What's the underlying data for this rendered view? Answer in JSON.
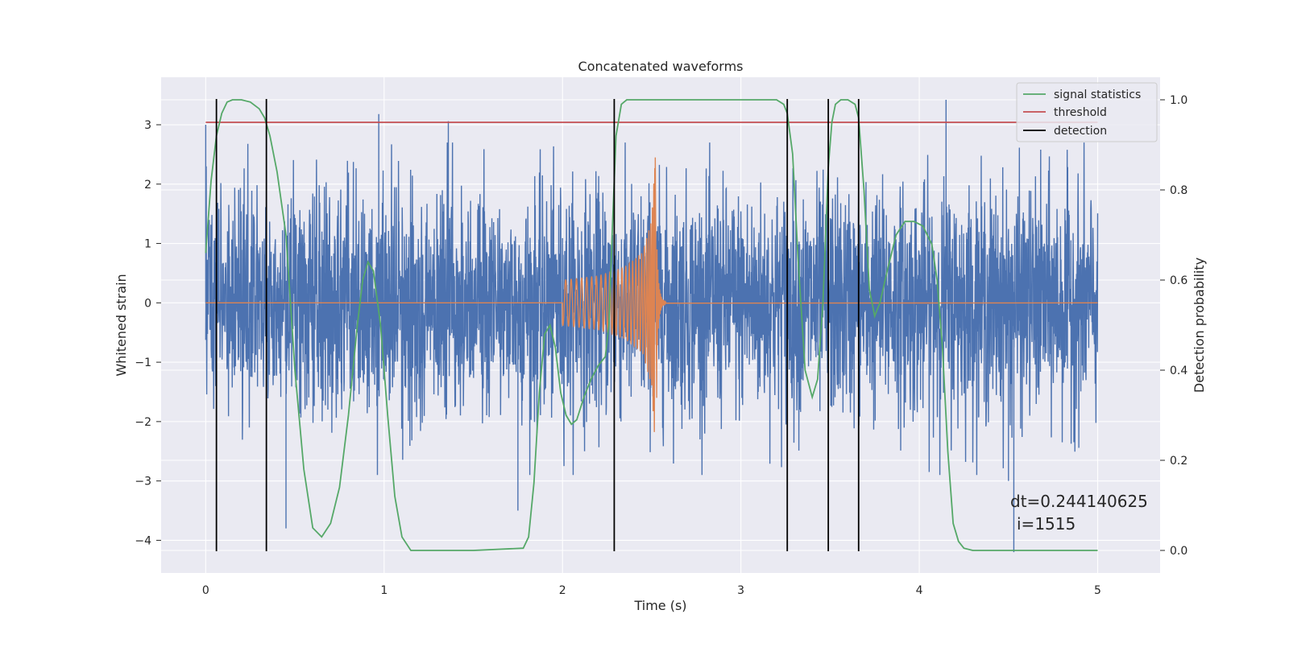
{
  "chart_data": {
    "type": "line",
    "title": "Concatenated waveforms",
    "xlabel": "Time (s)",
    "ylabel": "Whitened strain",
    "y2label": "Detection probability",
    "xlim": [
      -0.25,
      5.35
    ],
    "ylim": [
      -4.55,
      3.8
    ],
    "y2lim": [
      -0.05,
      1.05
    ],
    "x_ticks": [
      0,
      1,
      2,
      3,
      4,
      5
    ],
    "y_ticks": [
      -4,
      -3,
      -2,
      -1,
      0,
      1,
      2,
      3
    ],
    "y2_ticks": [
      0.0,
      0.2,
      0.4,
      0.6,
      0.8,
      1.0
    ],
    "grid": true,
    "legend_position": "top-right",
    "annotation": {
      "dt_text": "dt=0.244140625",
      "i_text": "i=1515"
    },
    "colors": {
      "strain": "#4c72b0",
      "injection": "#dd8452",
      "statistics": "#55a868",
      "threshold": "#c44e52",
      "detection": "#000000",
      "background": "#eaeaf2",
      "grid": "#ffffff"
    },
    "series": [
      {
        "name": "",
        "kind": "whitened strain noise (dense, approx. -2.5 to 2.5 with spikes)",
        "extremes": [
          [
            0.0,
            3.0
          ],
          [
            0.45,
            -3.8
          ],
          [
            0.97,
            3.18
          ],
          [
            1.36,
            3.06
          ],
          [
            1.75,
            -3.5
          ],
          [
            4.15,
            3.42
          ],
          [
            4.53,
            -4.2
          ],
          [
            4.5,
            -3.0
          ]
        ]
      },
      {
        "name": "",
        "kind": "injected chirp",
        "start": 2.0,
        "merger": 2.52,
        "end": 2.7,
        "envelope": [
          [
            2.0,
            0.38
          ],
          [
            2.2,
            0.45
          ],
          [
            2.35,
            0.6
          ],
          [
            2.45,
            0.85
          ],
          [
            2.5,
            1.4
          ],
          [
            2.52,
            2.45
          ],
          [
            2.53,
            -1.6
          ],
          [
            2.56,
            0.1
          ],
          [
            2.7,
            0.0
          ]
        ]
      },
      {
        "name": "signal statistics",
        "axis": "right",
        "x": [
          0.0,
          0.03,
          0.06,
          0.09,
          0.12,
          0.15,
          0.2,
          0.25,
          0.3,
          0.33,
          0.36,
          0.4,
          0.45,
          0.5,
          0.55,
          0.6,
          0.65,
          0.7,
          0.75,
          0.8,
          0.85,
          0.88,
          0.91,
          0.94,
          0.98,
          1.02,
          1.06,
          1.1,
          1.15,
          1.2,
          1.5,
          1.78,
          1.81,
          1.84,
          1.87,
          1.9,
          1.93,
          1.96,
          1.99,
          2.02,
          2.05,
          2.08,
          2.12,
          2.16,
          2.2,
          2.24,
          2.26,
          2.28,
          2.3,
          2.33,
          2.36,
          2.42,
          2.6,
          3.0,
          3.2,
          3.24,
          3.26,
          3.29,
          3.32,
          3.36,
          3.4,
          3.43,
          3.46,
          3.49,
          3.51,
          3.53,
          3.56,
          3.6,
          3.64,
          3.66,
          3.69,
          3.72,
          3.75,
          3.78,
          3.82,
          3.87,
          3.92,
          3.97,
          4.02,
          4.07,
          4.1,
          4.13,
          4.16,
          4.19,
          4.22,
          4.25,
          4.3,
          4.4,
          5.0
        ],
        "y": [
          0.66,
          0.82,
          0.92,
          0.97,
          0.995,
          1.0,
          1.0,
          0.995,
          0.98,
          0.96,
          0.92,
          0.84,
          0.7,
          0.4,
          0.18,
          0.05,
          0.03,
          0.06,
          0.14,
          0.3,
          0.5,
          0.6,
          0.64,
          0.62,
          0.5,
          0.3,
          0.12,
          0.03,
          0.0,
          0.0,
          0.0,
          0.005,
          0.03,
          0.15,
          0.35,
          0.48,
          0.5,
          0.45,
          0.35,
          0.3,
          0.28,
          0.29,
          0.34,
          0.38,
          0.41,
          0.43,
          0.5,
          0.72,
          0.92,
          0.99,
          1.0,
          1.0,
          1.0,
          1.0,
          1.0,
          0.99,
          0.97,
          0.88,
          0.65,
          0.4,
          0.34,
          0.38,
          0.55,
          0.85,
          0.95,
          0.99,
          1.0,
          1.0,
          0.99,
          0.96,
          0.8,
          0.58,
          0.52,
          0.55,
          0.62,
          0.7,
          0.73,
          0.73,
          0.72,
          0.68,
          0.6,
          0.45,
          0.22,
          0.06,
          0.02,
          0.005,
          0.0,
          0.0,
          0.0
        ]
      },
      {
        "name": "threshold",
        "axis": "right",
        "x": [
          0.0,
          5.0
        ],
        "y": [
          0.95,
          0.95
        ]
      },
      {
        "name": "detection",
        "kind": "vertical lines",
        "x": [
          0.06,
          0.34,
          2.29,
          3.26,
          3.49,
          3.66
        ]
      }
    ]
  }
}
